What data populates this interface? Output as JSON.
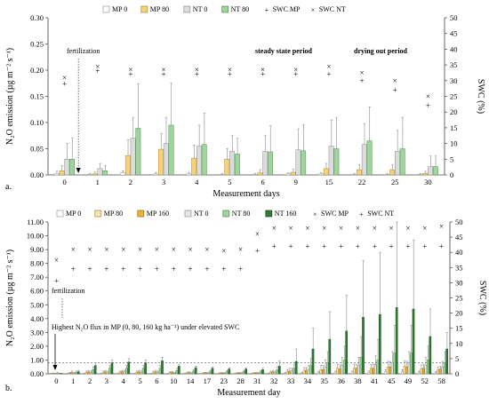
{
  "chart_data": [
    {
      "type": "bar",
      "panel_label": "a.",
      "categories": [
        "0",
        "1",
        "2",
        "3",
        "4",
        "5",
        "6",
        "9",
        "15",
        "22",
        "25",
        "30"
      ],
      "xlabel": "Measurement days",
      "ylabel_left": "N₂O emission (µg m⁻² s⁻¹)",
      "ylabel_right": "SWC (%)",
      "ylim": [
        0,
        0.3
      ],
      "yticks": [
        "0.00",
        "0.05",
        "0.10",
        "0.15",
        "0.20",
        "0.25",
        "0.30"
      ],
      "y2lim": [
        0,
        50
      ],
      "y2ticks": [
        "0",
        "5",
        "10",
        "15",
        "20",
        "25",
        "30",
        "35",
        "40",
        "45",
        "50"
      ],
      "legend_position": "top",
      "series": [
        {
          "name": "MP 0",
          "color": "#ffffff",
          "stroke": "#9a9a9a",
          "values": [
            0.003,
            0.001,
            0.004,
            0.002,
            0.002,
            0.001,
            0.001,
            0.002,
            0.002,
            0.001,
            0.001,
            0.001
          ],
          "errors": [
            0.004,
            0.002,
            0.004,
            0.003,
            0.003,
            0.002,
            0.002,
            0.002,
            0.002,
            0.002,
            0.002,
            0.002
          ]
        },
        {
          "name": "MP 80",
          "color": "#f6d37a",
          "stroke": "#a58830",
          "values": [
            0.008,
            0.002,
            0.037,
            0.049,
            0.032,
            0.03,
            0.004,
            0.005,
            0.012,
            0.01,
            0.01,
            0.003
          ],
          "errors": [
            0.01,
            0.004,
            0.03,
            0.03,
            0.025,
            0.02,
            0.006,
            0.006,
            0.01,
            0.01,
            0.01,
            0.004
          ]
        },
        {
          "name": "NT 0",
          "color": "#dcdcdc",
          "stroke": "#8c8c8c",
          "values": [
            0.03,
            0.012,
            0.07,
            0.06,
            0.055,
            0.045,
            0.045,
            0.048,
            0.055,
            0.058,
            0.045,
            0.016
          ],
          "errors": [
            0.03,
            0.01,
            0.04,
            0.05,
            0.04,
            0.03,
            0.03,
            0.04,
            0.05,
            0.04,
            0.04,
            0.02
          ]
        },
        {
          "name": "NT 80",
          "color": "#9fd49f",
          "stroke": "#4d8f4d",
          "values": [
            0.03,
            0.008,
            0.089,
            0.095,
            0.058,
            0.04,
            0.044,
            0.046,
            0.05,
            0.065,
            0.05,
            0.016
          ],
          "errors": [
            0.04,
            0.01,
            0.085,
            0.08,
            0.06,
            0.03,
            0.05,
            0.05,
            0.06,
            0.065,
            0.06,
            0.02
          ]
        }
      ],
      "markers": [
        {
          "name": "SWC MP",
          "symbol": "+",
          "values": [
            29,
            33,
            32,
            32,
            32,
            32,
            32,
            32,
            32,
            30,
            27,
            22
          ]
        },
        {
          "name": "SWC NT",
          "symbol": "×",
          "values": [
            31,
            34.5,
            33.5,
            33.5,
            33.5,
            33.5,
            33.5,
            33.5,
            34.5,
            32.5,
            30,
            25
          ]
        }
      ],
      "annotations": [
        {
          "text": "fertilization",
          "style": "normal"
        },
        {
          "text": "steady state period",
          "style": "bold"
        },
        {
          "text": "drying out period",
          "style": "bold"
        }
      ]
    },
    {
      "type": "bar",
      "panel_label": "b.",
      "categories": [
        "0",
        "1",
        "2",
        "3",
        "4",
        "5",
        "6",
        "10",
        "14",
        "17",
        "23",
        "28",
        "31",
        "32",
        "33",
        "34",
        "35",
        "36",
        "38",
        "41",
        "45",
        "49",
        "52",
        "58"
      ],
      "xlabel": "Measurement day",
      "ylabel_left": "N₂O emission (µg m⁻² s⁻¹)",
      "ylabel_right": "SWC (%)",
      "ylim": [
        0,
        11
      ],
      "yticks": [
        "0.00",
        "1.00",
        "2.00",
        "3.00",
        "4.00",
        "5.00",
        "6.00",
        "7.00",
        "8.00",
        "9.00",
        "10.00",
        "11.00"
      ],
      "y2lim": [
        0,
        50
      ],
      "y2ticks": [
        "0",
        "5",
        "10",
        "15",
        "20",
        "25",
        "30",
        "35",
        "40",
        "45",
        "50"
      ],
      "legend_position": "top",
      "reference_line": 0.8,
      "series": [
        {
          "name": "MP 0",
          "color": "#ffffff",
          "stroke": "#9a9a9a",
          "values": [
            0.02,
            0.02,
            0.02,
            0.02,
            0.02,
            0.02,
            0.02,
            0.02,
            0.02,
            0.02,
            0.02,
            0.02,
            0.02,
            0.03,
            0.05,
            0.05,
            0.08,
            0.1,
            0.1,
            0.12,
            0.15,
            0.15,
            0.1,
            0.08
          ],
          "errors": [
            0.02,
            0.02,
            0.02,
            0.02,
            0.02,
            0.02,
            0.02,
            0.02,
            0.02,
            0.02,
            0.02,
            0.02,
            0.02,
            0.03,
            0.05,
            0.05,
            0.1,
            0.1,
            0.1,
            0.1,
            0.15,
            0.15,
            0.1,
            0.08
          ]
        },
        {
          "name": "MP 80",
          "color": "#fbe6ad",
          "stroke": "#a58830",
          "values": [
            0.03,
            0.05,
            0.1,
            0.1,
            0.1,
            0.1,
            0.1,
            0.08,
            0.06,
            0.05,
            0.05,
            0.05,
            0.05,
            0.1,
            0.15,
            0.25,
            0.3,
            0.4,
            0.4,
            0.4,
            0.5,
            0.55,
            0.35,
            0.3
          ],
          "errors": [
            0.03,
            0.05,
            0.1,
            0.1,
            0.1,
            0.1,
            0.1,
            0.08,
            0.06,
            0.05,
            0.05,
            0.05,
            0.05,
            0.1,
            0.15,
            0.2,
            0.3,
            0.3,
            0.3,
            0.3,
            0.4,
            0.4,
            0.3,
            0.2
          ]
        },
        {
          "name": "MP 160",
          "color": "#f0b32c",
          "stroke": "#9a6d10",
          "values": [
            0.02,
            0.1,
            0.15,
            0.15,
            0.15,
            0.15,
            0.15,
            0.1,
            0.08,
            0.06,
            0.05,
            0.05,
            0.05,
            0.15,
            0.2,
            0.25,
            0.3,
            0.35,
            0.4,
            0.4,
            0.5,
            0.5,
            0.4,
            0.35
          ],
          "errors": [
            0.02,
            0.1,
            0.1,
            0.1,
            0.1,
            0.1,
            0.1,
            0.08,
            0.06,
            0.05,
            0.05,
            0.05,
            0.05,
            0.1,
            0.2,
            0.2,
            0.3,
            0.3,
            0.3,
            0.3,
            0.4,
            0.4,
            0.3,
            0.2
          ]
        },
        {
          "name": "NT 0",
          "color": "#e6e6e6",
          "stroke": "#8c8c8c",
          "values": [
            0.05,
            0.05,
            0.1,
            0.1,
            0.15,
            0.1,
            0.1,
            0.05,
            0.05,
            0.05,
            0.05,
            0.05,
            0.05,
            0.1,
            0.2,
            0.3,
            0.5,
            0.6,
            0.6,
            0.7,
            0.8,
            0.8,
            0.6,
            0.5
          ],
          "errors": [
            0.05,
            0.05,
            0.1,
            0.1,
            0.1,
            0.1,
            0.1,
            0.05,
            0.05,
            0.05,
            0.05,
            0.05,
            0.05,
            0.1,
            0.2,
            0.3,
            0.5,
            0.6,
            0.6,
            0.6,
            0.8,
            0.8,
            0.6,
            0.4
          ]
        },
        {
          "name": "NT 80",
          "color": "#9fd49f",
          "stroke": "#4d8f4d",
          "values": [
            0.02,
            0.1,
            0.3,
            0.4,
            0.4,
            0.4,
            0.4,
            0.25,
            0.2,
            0.15,
            0.15,
            0.15,
            0.15,
            0.3,
            0.4,
            0.6,
            0.8,
            1.0,
            1.2,
            1.0,
            1.5,
            1.5,
            1.0,
            0.8
          ],
          "errors": [
            0.02,
            0.1,
            0.2,
            0.2,
            0.2,
            0.2,
            0.2,
            0.15,
            0.1,
            0.1,
            0.1,
            0.1,
            0.1,
            0.2,
            0.3,
            0.5,
            0.8,
            1.0,
            1.5,
            1.5,
            2.0,
            2.0,
            1.0,
            0.8
          ]
        },
        {
          "name": "NT 160",
          "color": "#2e7d32",
          "stroke": "#1b4d1e",
          "values": [
            0.02,
            0.15,
            0.6,
            0.8,
            0.85,
            0.8,
            0.95,
            0.55,
            0.45,
            0.4,
            0.35,
            0.35,
            0.3,
            0.55,
            0.9,
            1.8,
            2.5,
            3.1,
            4.1,
            4.3,
            4.8,
            4.7,
            2.7,
            1.8
          ],
          "errors": [
            0.02,
            0.1,
            0.2,
            0.2,
            0.25,
            0.2,
            0.25,
            0.15,
            0.1,
            0.1,
            0.1,
            0.1,
            0.1,
            0.4,
            0.9,
            1.5,
            2.0,
            2.6,
            4.1,
            4.5,
            6.2,
            5.0,
            2.0,
            1.2
          ]
        }
      ],
      "markers": [
        {
          "name": "SWC MP",
          "symbol": "×",
          "values": [
            37.5,
            41,
            41,
            41,
            41,
            41,
            41,
            41,
            41,
            41,
            40.5,
            41,
            46,
            48,
            48,
            48,
            48,
            48,
            48,
            48,
            48,
            48,
            48,
            48.5
          ]
        },
        {
          "name": "SWC NT",
          "symbol": "+",
          "values": [
            30.5,
            34.5,
            34.5,
            34.5,
            34.5,
            34.5,
            34.5,
            34.5,
            34.5,
            34.5,
            34.5,
            34.5,
            40.5,
            42,
            42,
            42,
            42,
            42,
            42,
            42,
            42,
            42,
            42,
            42
          ]
        }
      ],
      "annotations": [
        {
          "text": "fertilization",
          "style": "normal"
        },
        {
          "text": "Highest N₂O flux in MP (0, 80, 160 kg ha⁻¹) under elevated SWC",
          "style": "normal"
        }
      ]
    }
  ]
}
